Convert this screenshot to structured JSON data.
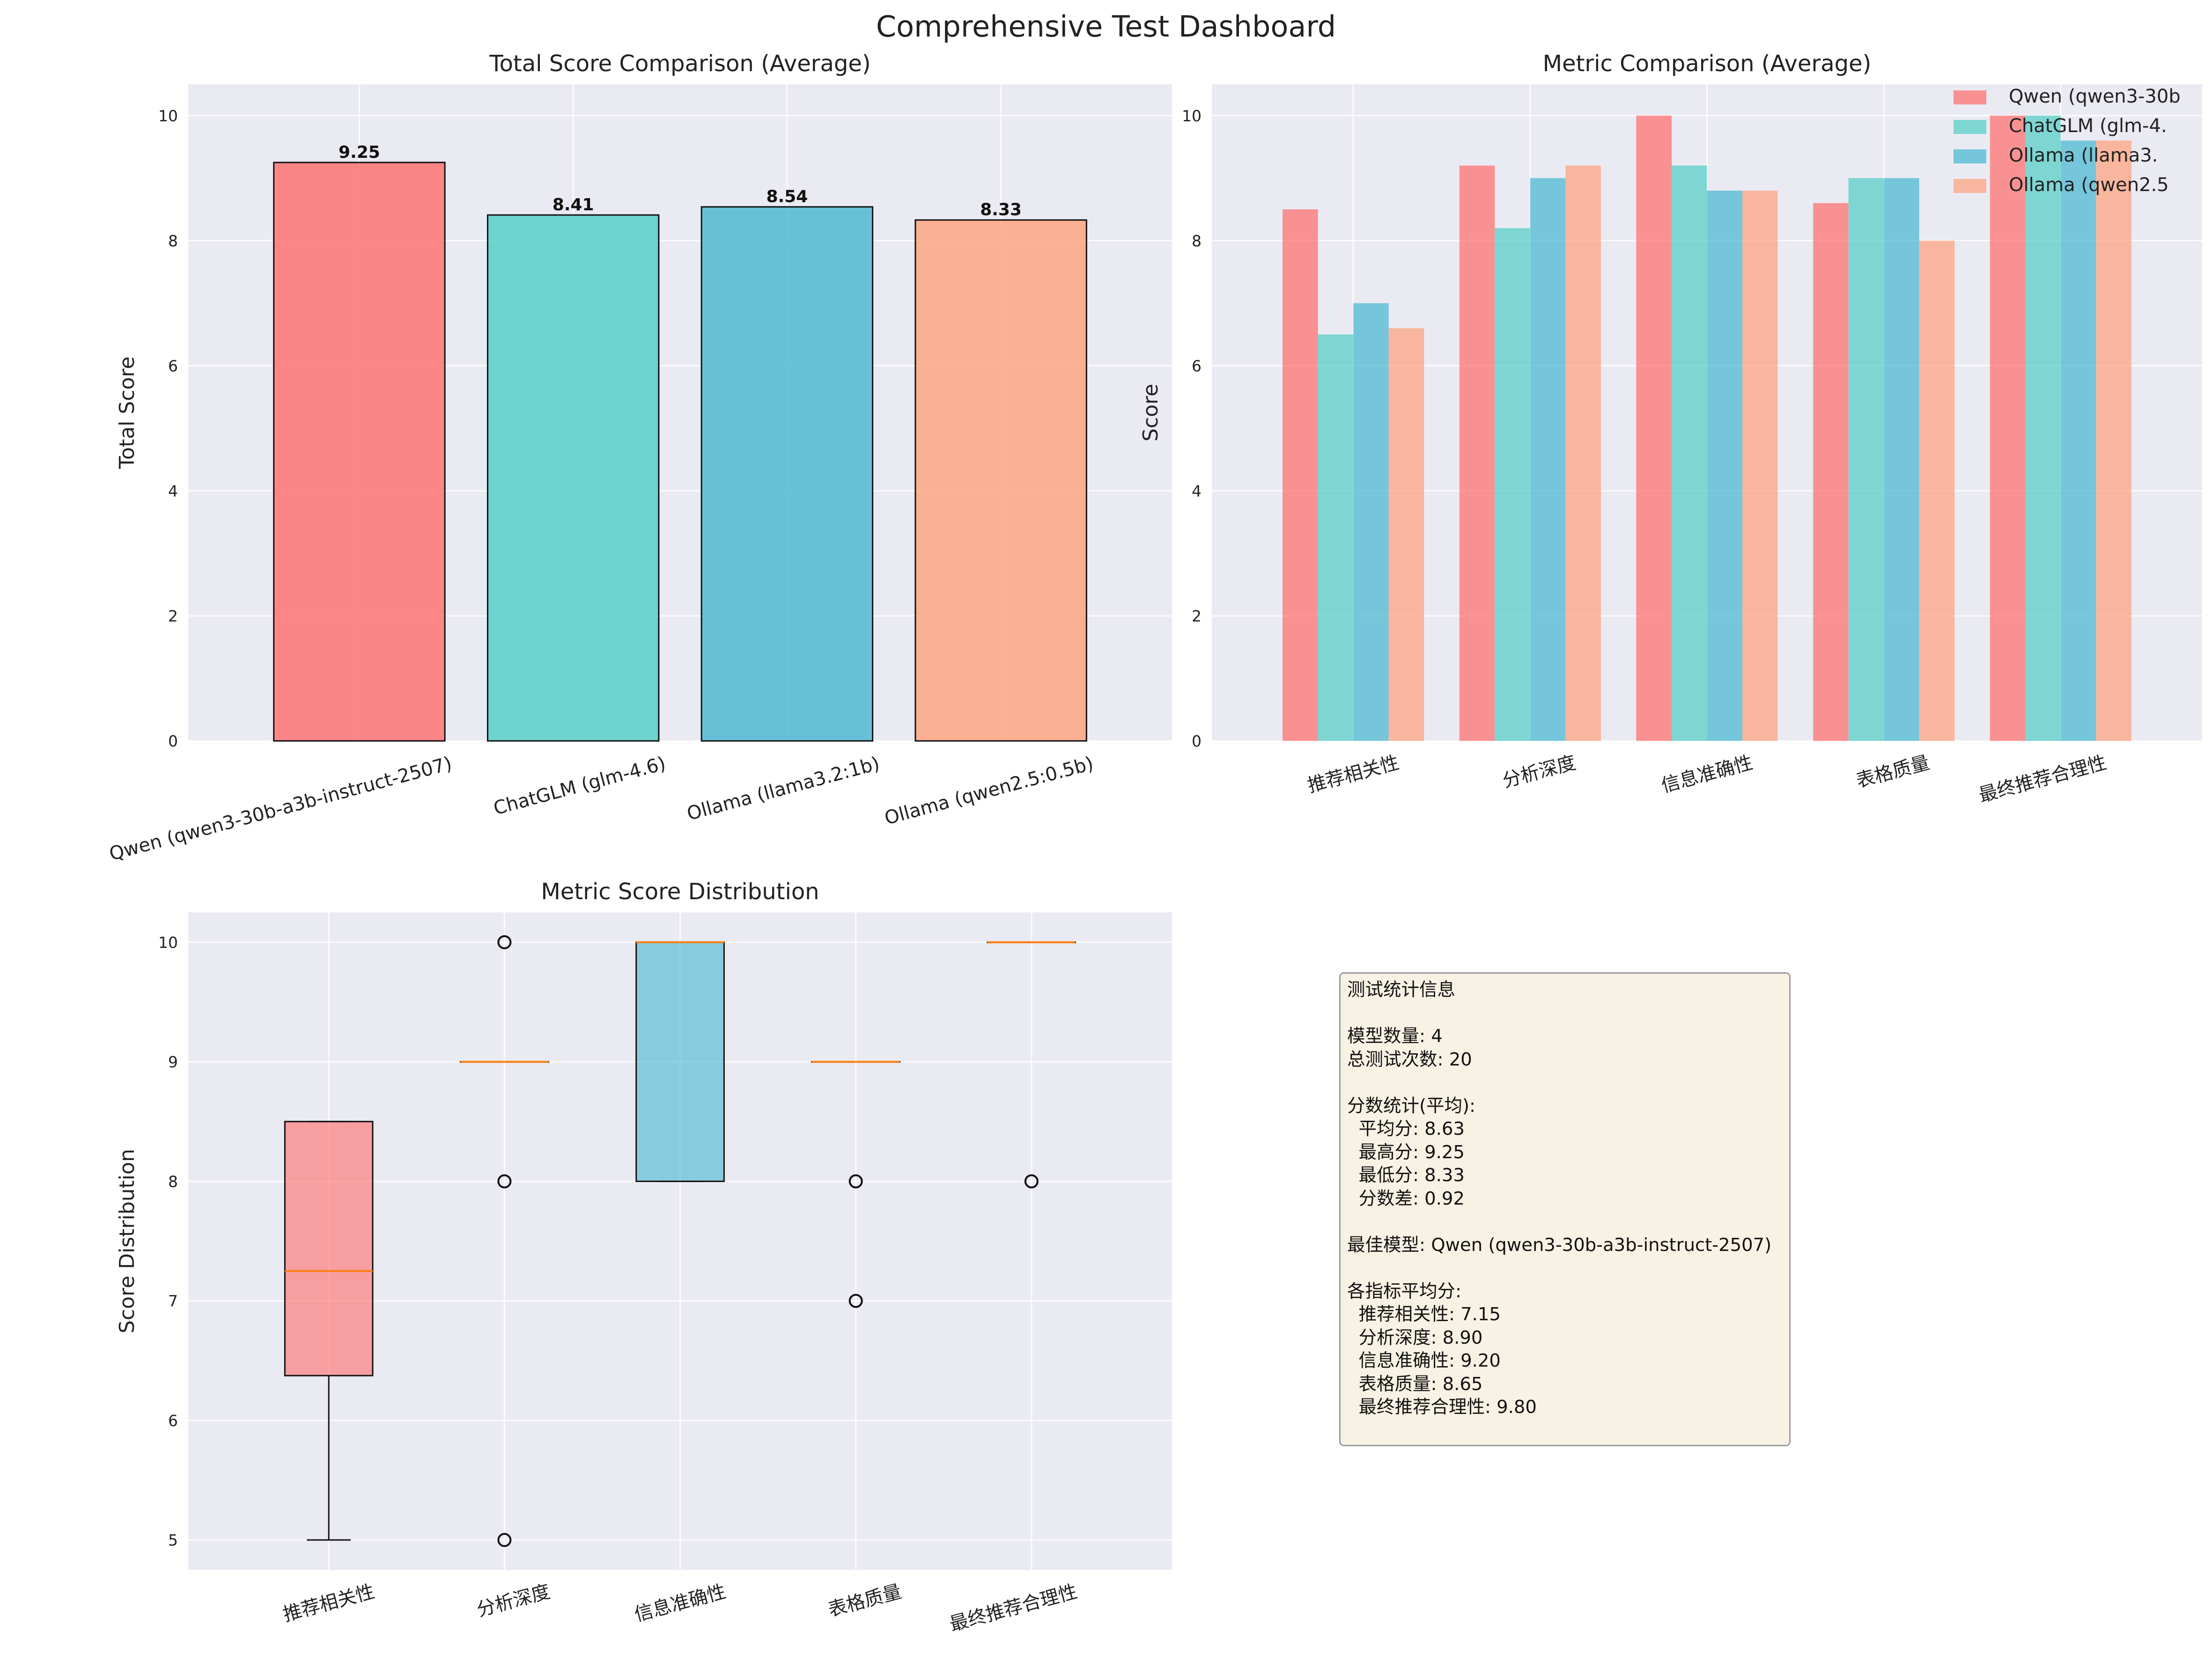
{
  "page_title": "Comprehensive Test Dashboard",
  "colors": [
    "#FF6B6B",
    "#4ECDC4",
    "#45B7D1",
    "#FFA07A"
  ],
  "chart_data": [
    {
      "type": "bar",
      "title": "Total Score Comparison (Average)",
      "xlabel": "",
      "ylabel": "Total Score",
      "ylim": [
        0,
        10.5
      ],
      "yticks": [
        "0",
        "2",
        "4",
        "6",
        "8",
        "10"
      ],
      "grid": true,
      "categories": [
        "Qwen (qwen3-30b-a3b-instruct-2507)",
        "ChatGLM (glm-4.6)",
        "Ollama (llama3.2:1b)",
        "Ollama (qwen2.5:0.5b)"
      ],
      "values": [
        9.25,
        8.41,
        8.54,
        8.33
      ],
      "data_labels": [
        "9.25",
        "8.41",
        "8.54",
        "8.33"
      ]
    },
    {
      "type": "bar",
      "title": "Metric Comparison (Average)",
      "xlabel": "",
      "ylabel": "Score",
      "ylim": [
        0,
        10.5
      ],
      "yticks": [
        "0",
        "2",
        "4",
        "6",
        "8",
        "10"
      ],
      "grid": true,
      "legend_position": "top-right",
      "categories": [
        "推荐相关性",
        "分析深度",
        "信息准确性",
        "表格质量",
        "最终推荐合理性"
      ],
      "series": [
        {
          "name": "Qwen (qwen3-30b",
          "values": [
            8.5,
            9.2,
            10.0,
            8.6,
            10.0
          ]
        },
        {
          "name": "ChatGLM (glm-4.",
          "values": [
            6.5,
            8.2,
            9.2,
            9.0,
            10.0
          ]
        },
        {
          "name": "Ollama (llama3.",
          "values": [
            7.0,
            9.0,
            8.8,
            9.0,
            9.6
          ]
        },
        {
          "name": "Ollama (qwen2.5",
          "values": [
            6.6,
            9.2,
            8.8,
            8.0,
            9.6
          ]
        }
      ]
    },
    {
      "type": "box",
      "title": "Metric Score Distribution",
      "xlabel": "",
      "ylabel": "Score Distribution",
      "ylim": [
        4.75,
        10.25
      ],
      "yticks": [
        "5",
        "6",
        "7",
        "8",
        "9",
        "10"
      ],
      "grid": true,
      "categories": [
        "推荐相关性",
        "分析深度",
        "信息准确性",
        "表格质量",
        "最终推荐合理性"
      ],
      "boxes": [
        {
          "whisker_low": 5,
          "q1": 6.375,
          "median": 7.25,
          "q3": 8.5,
          "whisker_high": 8.5,
          "outliers": []
        },
        {
          "whisker_low": 9,
          "q1": 9,
          "median": 9,
          "q3": 9,
          "whisker_high": 9,
          "outliers": [
            10,
            8,
            5
          ]
        },
        {
          "whisker_low": 8,
          "q1": 8,
          "median": 10,
          "q3": 10,
          "whisker_high": 10,
          "outliers": []
        },
        {
          "whisker_low": 9,
          "q1": 9,
          "median": 9,
          "q3": 9,
          "whisker_high": 9,
          "outliers": [
            8,
            7
          ]
        },
        {
          "whisker_low": 10,
          "q1": 10,
          "median": 10,
          "q3": 10,
          "whisker_high": 10,
          "outliers": [
            8
          ]
        }
      ]
    }
  ],
  "stats_panel": {
    "lines": [
      "测试统计信息",
      "",
      "模型数量: 4",
      "总测试次数: 20",
      "",
      "分数统计(平均):",
      "  平均分: 8.63",
      "  最高分: 9.25",
      "  最低分: 8.33",
      "  分数差: 0.92",
      "",
      "最佳模型: Qwen (qwen3-30b-a3b-instruct-2507)",
      "",
      "各指标平均分:",
      "  推荐相关性: 7.15",
      "  分析深度: 8.90",
      "  信息准确性: 9.20",
      "  表格质量: 8.65",
      "  最终推荐合理性: 9.80"
    ]
  }
}
